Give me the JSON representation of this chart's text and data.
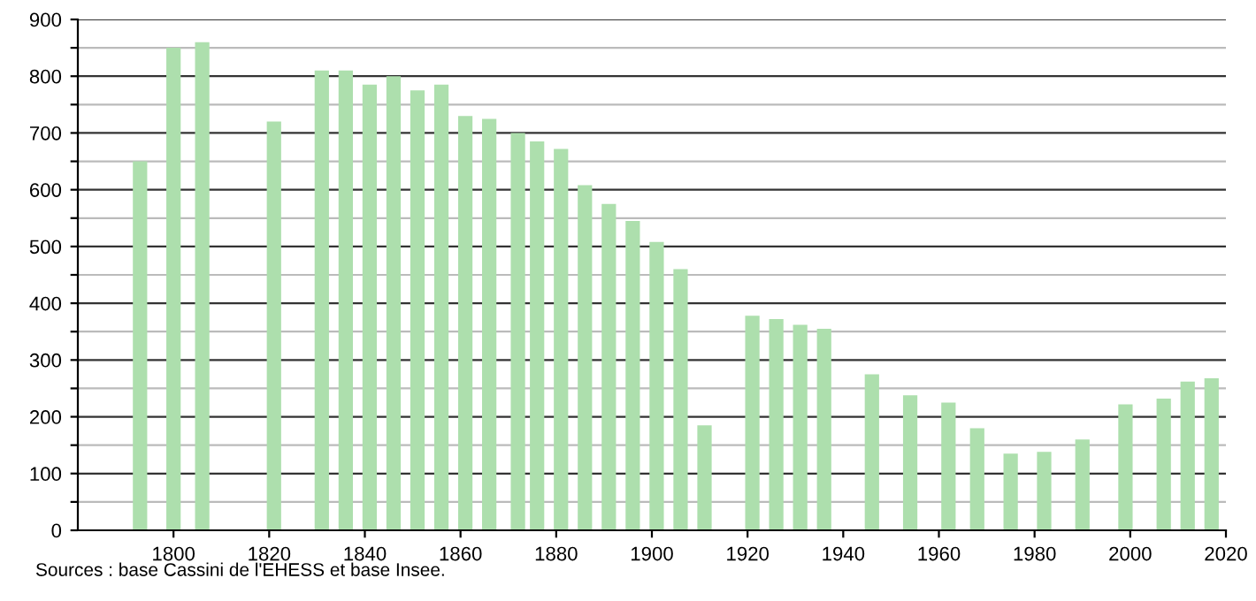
{
  "chart_data": {
    "type": "bar",
    "x": [
      1793,
      1800,
      1806,
      1821,
      1831,
      1836,
      1841,
      1846,
      1851,
      1856,
      1861,
      1866,
      1872,
      1876,
      1881,
      1886,
      1891,
      1896,
      1901,
      1906,
      1911,
      1921,
      1926,
      1931,
      1936,
      1946,
      1954,
      1962,
      1968,
      1975,
      1982,
      1990,
      1999,
      2007,
      2012,
      2017
    ],
    "values": [
      650,
      850,
      860,
      720,
      810,
      810,
      785,
      800,
      775,
      785,
      730,
      725,
      700,
      685,
      672,
      608,
      575,
      545,
      508,
      460,
      185,
      378,
      372,
      362,
      355,
      275,
      238,
      225,
      180,
      135,
      138,
      160,
      222,
      232,
      262,
      268
    ],
    "color": "#addfad",
    "xlim": [
      1780,
      2020
    ],
    "xticks": [
      1800,
      1820,
      1840,
      1860,
      1880,
      1900,
      1920,
      1940,
      1960,
      1980,
      2000,
      2020
    ],
    "ylim": [
      0,
      900
    ],
    "yticks": [
      0,
      {
        "value": 50,
        "label": null
      },
      100,
      {
        "value": 150,
        "label": null
      },
      200,
      {
        "value": 250,
        "label": null
      },
      300,
      {
        "value": 350,
        "label": null
      },
      400,
      {
        "value": 450,
        "label": null
      },
      500,
      {
        "value": 550,
        "label": null
      },
      600,
      {
        "value": 650,
        "label": null
      },
      700,
      {
        "value": 750,
        "label": null
      },
      800,
      {
        "value": 850,
        "label": null
      },
      900
    ],
    "grid": "y",
    "annotations": [
      "Sources : base Cassini de l'EHESS et base Insee."
    ]
  }
}
